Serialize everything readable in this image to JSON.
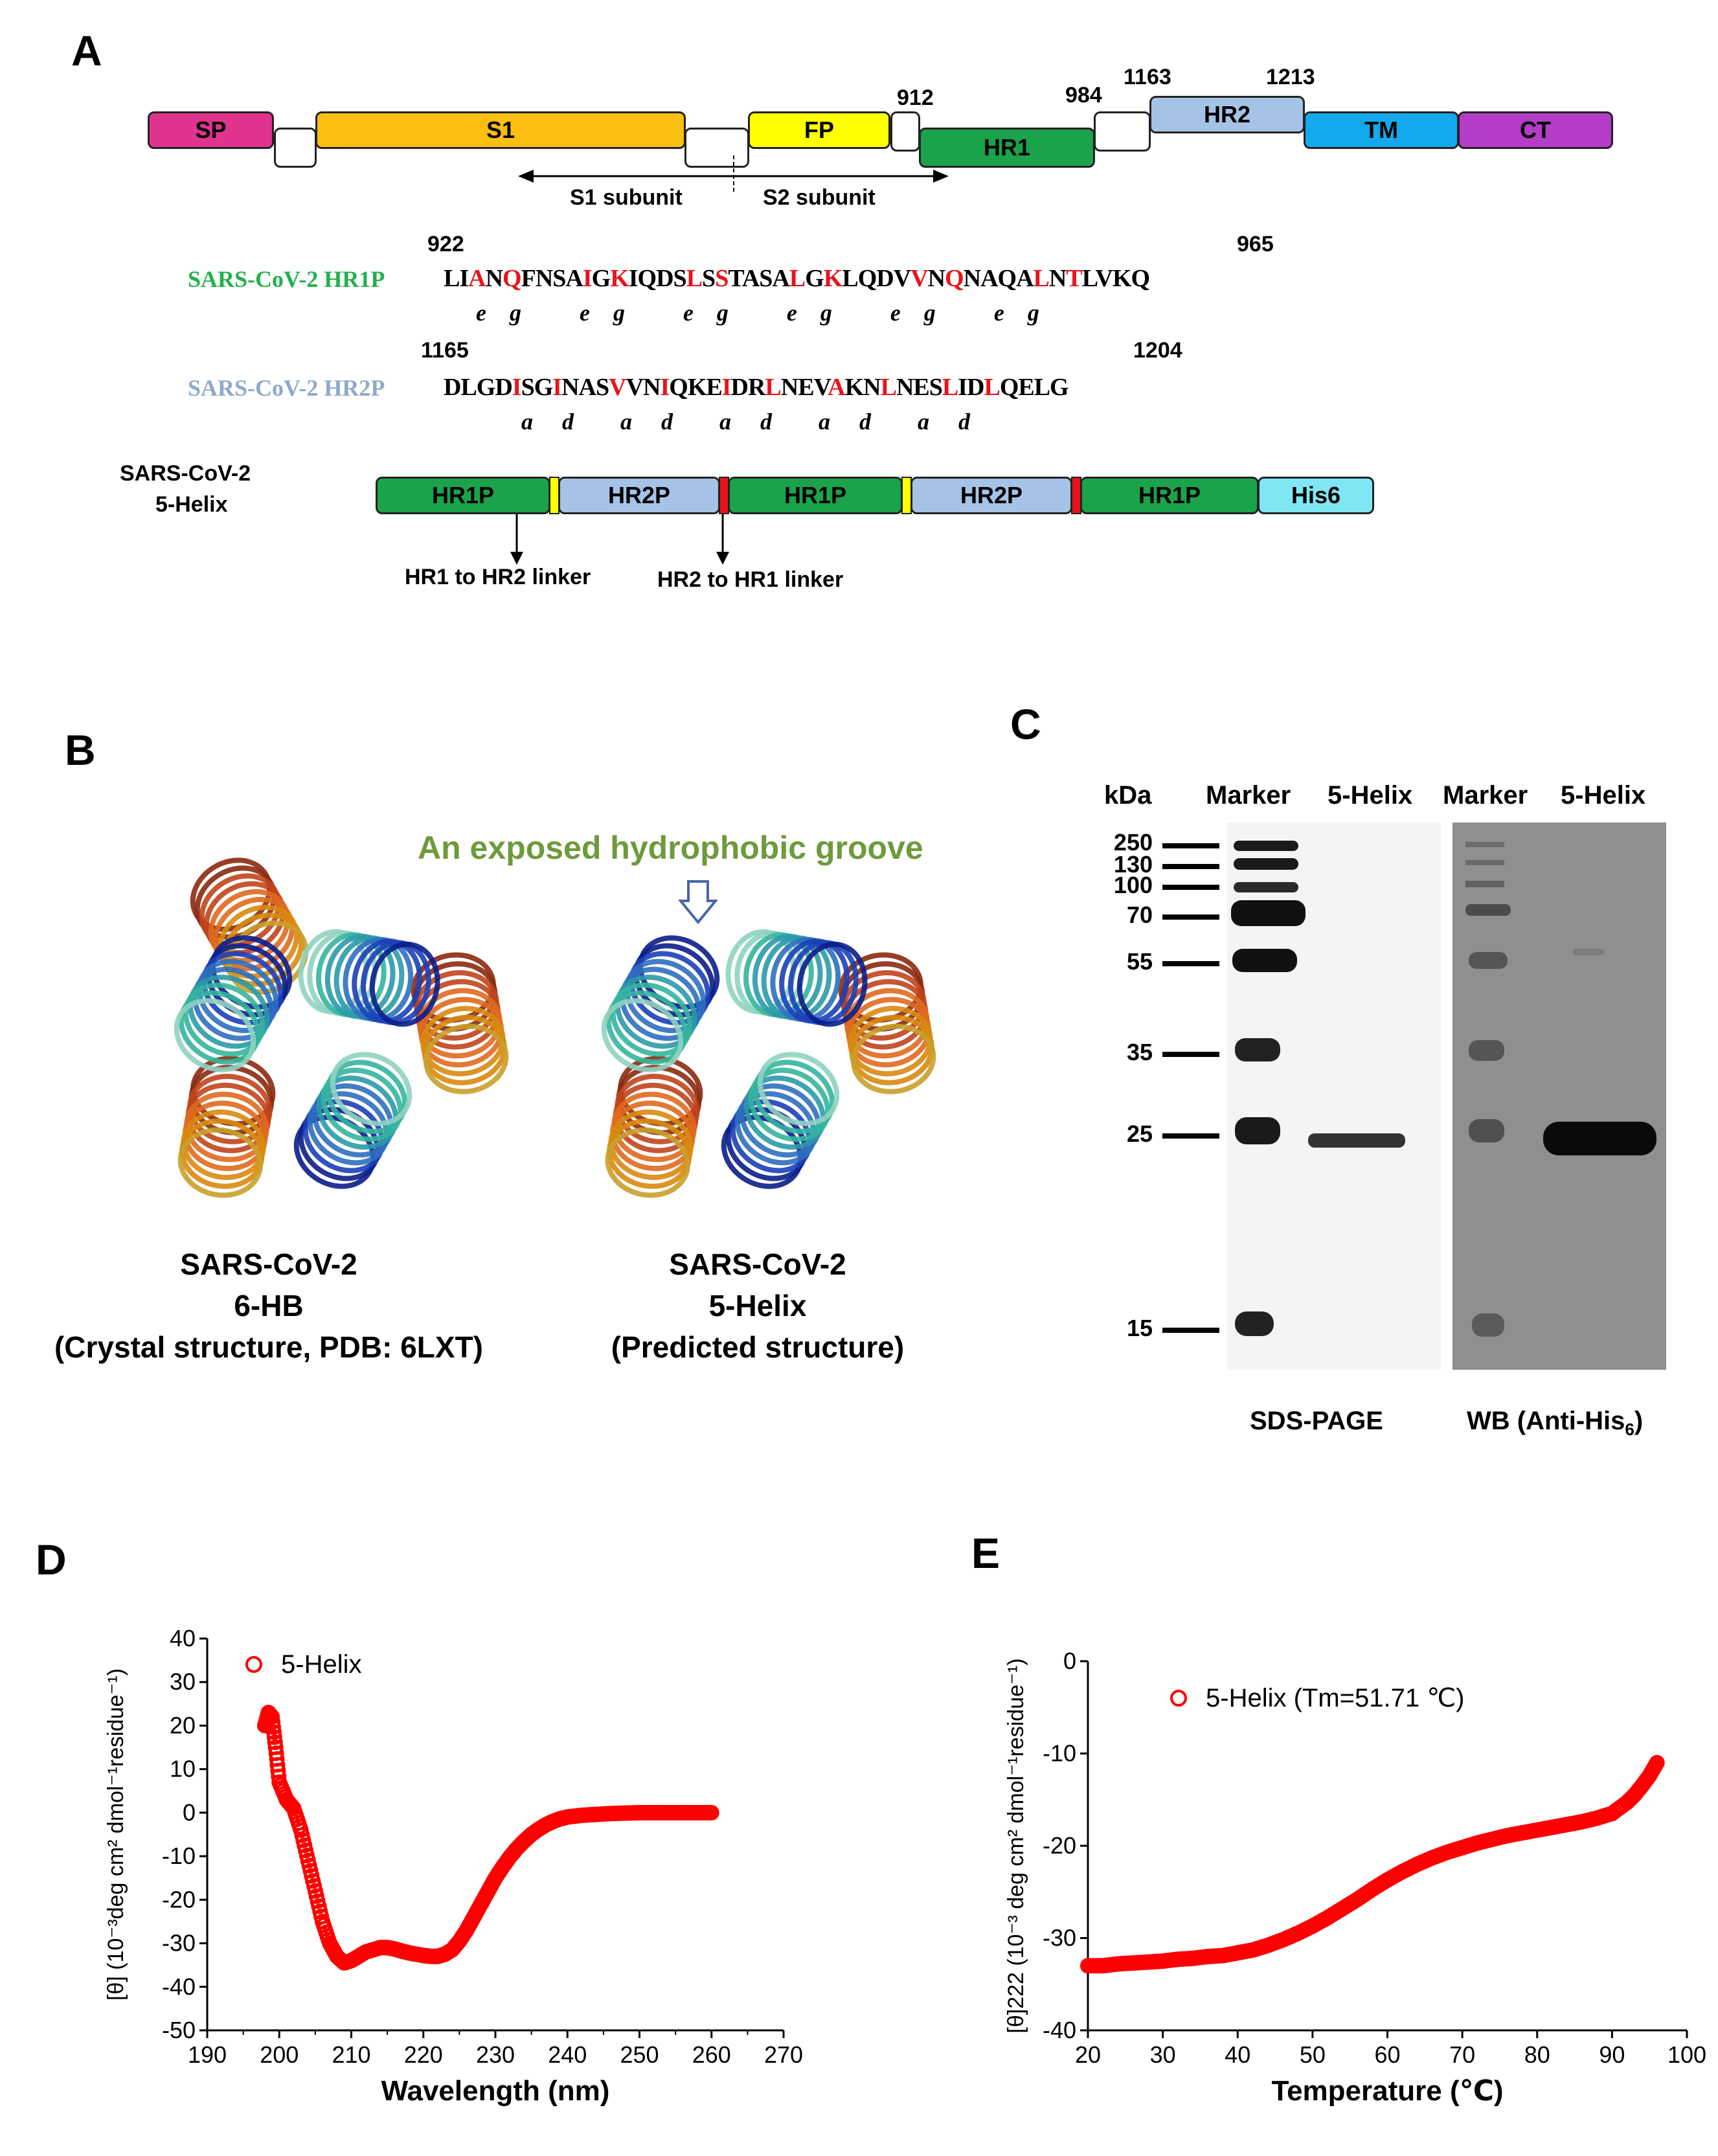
{
  "panels": {
    "A": "A",
    "B": "B",
    "C": "C",
    "D": "D",
    "E": "E"
  },
  "panel_a": {
    "domains": {
      "sp": "SP",
      "s1": "S1",
      "fp": "FP",
      "hr1": "HR1",
      "hr2": "HR2",
      "tm": "TM",
      "ct": "CT"
    },
    "positions": {
      "p912": "912",
      "p984": "984",
      "p1163": "1163",
      "p1213": "1213"
    },
    "subunits": {
      "s1": "S1 subunit",
      "s2": "S2 subunit"
    },
    "hr1p": {
      "name": "SARS-CoV-2 HR1P",
      "start": "922",
      "end": "965",
      "heptad": "e    g          e    g          e    g          e    g          e    g          e    g"
    },
    "hr2p": {
      "name": "SARS-CoV-2 HR2P",
      "start": "1165",
      "end": "1204",
      "heptad": "a     d        a     d        a     d        a     d        a     d"
    },
    "construct": {
      "title_line1": "SARS-CoV-2",
      "title_line2": "5-Helix",
      "blocks": [
        "HR1P",
        "HR2P",
        "HR1P",
        "HR2P",
        "HR1P",
        "His6"
      ],
      "linker1": "HR1 to HR2 linker",
      "linker2": "HR2 to HR1 linker"
    },
    "colors": {
      "hr1p_name": "#22b14c",
      "hr2p_name": "#8fa9c8",
      "residue_highlight": "#e8141c"
    }
  },
  "panel_b": {
    "groove_label": "An exposed hydrophobic groove",
    "left_caption": "SARS-CoV-2\n6-HB\n(Crystal structure, PDB: 6LXT)",
    "right_caption": "SARS-CoV-2\n5-Helix\n(Predicted structure)"
  },
  "panel_c": {
    "kda": "kDa",
    "lane_headers": [
      "Marker",
      "5-Helix",
      "Marker",
      "5-Helix"
    ],
    "mw_markers": [
      "250",
      "130",
      "100",
      "70",
      "55",
      "35",
      "25",
      "15"
    ],
    "sds_label": "SDS-PAGE",
    "wb_label": "WB (Anti-His",
    "wb_sub": "6",
    "wb_close": ")"
  },
  "chart_data": [
    {
      "type": "scatter",
      "panel": "D",
      "series": [
        {
          "name": "5-Helix",
          "color": "#ff0000"
        }
      ],
      "xlabel": "Wavelength (nm)",
      "ylabel": "[θ] (10⁻³deg cm² dmol⁻¹residue⁻¹)",
      "xlim": [
        190,
        270
      ],
      "ylim": [
        -50,
        40
      ],
      "xticks": [
        190,
        200,
        210,
        220,
        230,
        240,
        250,
        260,
        270
      ],
      "yticks": [
        40,
        30,
        20,
        10,
        0,
        -10,
        -20,
        -30,
        -40,
        -50
      ],
      "x": [
        198,
        198.5,
        199,
        199.5,
        200,
        201,
        202,
        203,
        204,
        205,
        206,
        207,
        208,
        209,
        210,
        211,
        212,
        213,
        214,
        215,
        216,
        217,
        218,
        219,
        220,
        221,
        222,
        223,
        224,
        225,
        226,
        227,
        228,
        229,
        230,
        231,
        232,
        233,
        234,
        235,
        236,
        237,
        238,
        239,
        240,
        242,
        244,
        246,
        248,
        250,
        252,
        254,
        256,
        258,
        260
      ],
      "y": [
        20,
        23,
        22,
        15,
        7,
        3,
        1,
        -4,
        -11,
        -18,
        -25,
        -30,
        -33,
        -34.5,
        -34,
        -33,
        -32,
        -31.5,
        -31,
        -31,
        -31.3,
        -31.8,
        -32.2,
        -32.5,
        -32.8,
        -33,
        -33,
        -32.5,
        -31.5,
        -29.5,
        -27,
        -24,
        -21,
        -18,
        -15,
        -12.5,
        -10.2,
        -8.2,
        -6.5,
        -5,
        -3.8,
        -2.8,
        -2,
        -1.4,
        -1,
        -0.6,
        -0.4,
        -0.2,
        -0.1,
        0,
        0,
        0,
        0,
        0,
        0
      ]
    },
    {
      "type": "scatter",
      "panel": "E",
      "series": [
        {
          "name": "5-Helix (Tm=51.71 ℃)",
          "color": "#ff0000"
        }
      ],
      "xlabel": "Temperature (℃)",
      "ylabel": "[θ]222 (10⁻³ deg cm² dmol⁻¹residue⁻¹)",
      "xlim": [
        20,
        100
      ],
      "ylim": [
        -40,
        0
      ],
      "xticks": [
        20,
        30,
        40,
        50,
        60,
        70,
        80,
        90,
        100
      ],
      "yticks": [
        0,
        -10,
        -20,
        -30,
        -40
      ],
      "x": [
        20,
        22,
        24,
        26,
        28,
        30,
        32,
        34,
        36,
        38,
        40,
        42,
        44,
        46,
        48,
        50,
        52,
        54,
        56,
        58,
        60,
        62,
        64,
        66,
        68,
        70,
        72,
        74,
        76,
        78,
        80,
        82,
        84,
        86,
        88,
        90,
        92,
        93,
        94,
        95,
        96
      ],
      "y": [
        -33,
        -33,
        -32.8,
        -32.7,
        -32.6,
        -32.5,
        -32.3,
        -32.2,
        -32,
        -31.9,
        -31.6,
        -31.3,
        -30.8,
        -30.2,
        -29.5,
        -28.7,
        -27.8,
        -26.8,
        -25.8,
        -24.7,
        -23.7,
        -22.8,
        -22,
        -21.3,
        -20.7,
        -20.2,
        -19.7,
        -19.3,
        -18.9,
        -18.6,
        -18.3,
        -18,
        -17.7,
        -17.4,
        -17,
        -16.5,
        -15.3,
        -14.5,
        -13.5,
        -12.4,
        -11
      ]
    }
  ]
}
